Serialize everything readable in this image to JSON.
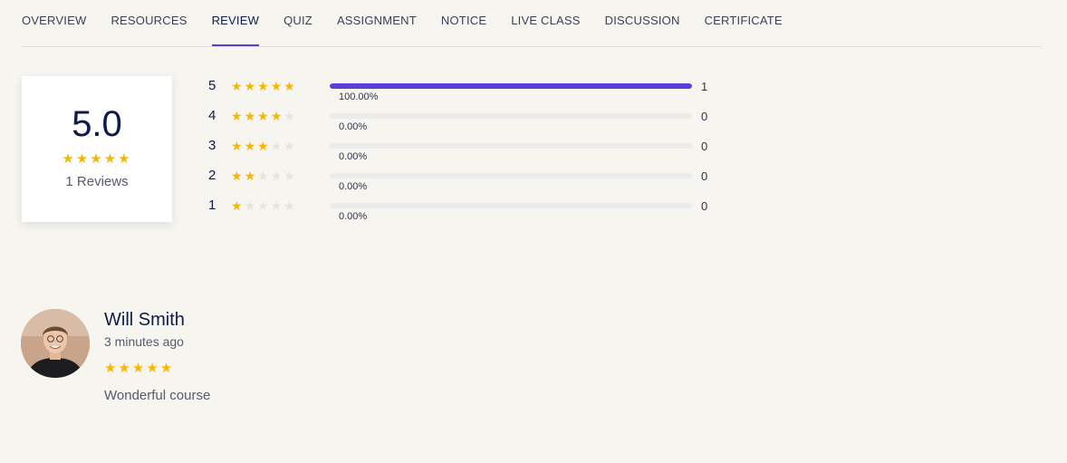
{
  "tabs": [
    {
      "label": "OVERVIEW",
      "active": false
    },
    {
      "label": "RESOURCES",
      "active": false
    },
    {
      "label": "REVIEW",
      "active": true
    },
    {
      "label": "QUIZ",
      "active": false
    },
    {
      "label": "ASSIGNMENT",
      "active": false
    },
    {
      "label": "NOTICE",
      "active": false
    },
    {
      "label": "LIVE CLASS",
      "active": false
    },
    {
      "label": "DISCUSSION",
      "active": false
    },
    {
      "label": "CERTIFICATE",
      "active": false
    }
  ],
  "summary": {
    "average": "5.0",
    "stars": 5,
    "count_text": "1 Reviews"
  },
  "breakdown": [
    {
      "star": "5",
      "rating": 5,
      "fill": 1.0,
      "percent": "100.00%",
      "count": "1"
    },
    {
      "star": "4",
      "rating": 4,
      "fill": 0.0,
      "percent": "0.00%",
      "count": "0"
    },
    {
      "star": "3",
      "rating": 3,
      "fill": 0.0,
      "percent": "0.00%",
      "count": "0"
    },
    {
      "star": "2",
      "rating": 2,
      "fill": 0.0,
      "percent": "0.00%",
      "count": "0"
    },
    {
      "star": "1",
      "rating": 1,
      "fill": 0.0,
      "percent": "0.00%",
      "count": "0"
    }
  ],
  "review": {
    "name": "Will Smith",
    "time": "3 minutes ago",
    "stars": 5,
    "comment": "Wonderful course"
  },
  "icons": {
    "star": "star-icon",
    "avatar": "user-photo"
  },
  "colors": {
    "accent": "#5a3fd6",
    "star": "#f5b800",
    "star_empty": "#e4e4e4",
    "background": "#f7f5f0"
  }
}
